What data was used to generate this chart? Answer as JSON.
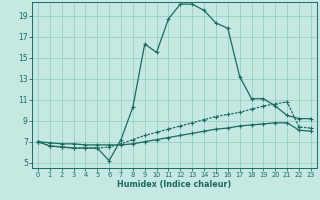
{
  "xlabel": "Humidex (Indice chaleur)",
  "bg_color": "#c5e8e2",
  "grid_color": "#96cfc4",
  "line_color": "#1a6b5e",
  "xlim": [
    -0.5,
    23.5
  ],
  "ylim": [
    4.5,
    20.3
  ],
  "xticks": [
    0,
    1,
    2,
    3,
    4,
    5,
    6,
    7,
    8,
    9,
    10,
    11,
    12,
    13,
    14,
    15,
    16,
    17,
    18,
    19,
    20,
    21,
    22,
    23
  ],
  "yticks": [
    5,
    7,
    9,
    11,
    13,
    15,
    17,
    19
  ],
  "line1_x": [
    0,
    1,
    2,
    3,
    4,
    5,
    6,
    7,
    8,
    9,
    10,
    11,
    12,
    13,
    14,
    15,
    16,
    17,
    18,
    19,
    20,
    21,
    22,
    23
  ],
  "line1_y": [
    7.0,
    6.6,
    6.5,
    6.4,
    6.4,
    6.4,
    5.2,
    7.2,
    10.3,
    16.3,
    15.5,
    18.7,
    20.1,
    20.1,
    19.5,
    18.3,
    17.8,
    13.2,
    11.1,
    11.1,
    10.4,
    9.5,
    9.2,
    9.2
  ],
  "line2_x": [
    0,
    1,
    2,
    3,
    4,
    5,
    6,
    7,
    8,
    9,
    10,
    11,
    12,
    13,
    14,
    15,
    16,
    17,
    18,
    19,
    20,
    21,
    22,
    23
  ],
  "line2_y": [
    7.0,
    6.6,
    6.5,
    6.4,
    6.4,
    6.4,
    6.5,
    6.8,
    7.2,
    7.6,
    7.9,
    8.2,
    8.5,
    8.8,
    9.1,
    9.4,
    9.6,
    9.8,
    10.1,
    10.4,
    10.6,
    10.8,
    8.4,
    8.3
  ],
  "line3_x": [
    0,
    1,
    2,
    3,
    4,
    5,
    6,
    7,
    8,
    9,
    10,
    11,
    12,
    13,
    14,
    15,
    16,
    17,
    18,
    19,
    20,
    21,
    22,
    23
  ],
  "line3_y": [
    7.0,
    6.9,
    6.8,
    6.8,
    6.7,
    6.7,
    6.7,
    6.7,
    6.8,
    7.0,
    7.2,
    7.4,
    7.6,
    7.8,
    8.0,
    8.2,
    8.3,
    8.5,
    8.6,
    8.7,
    8.8,
    8.8,
    8.1,
    8.0
  ]
}
